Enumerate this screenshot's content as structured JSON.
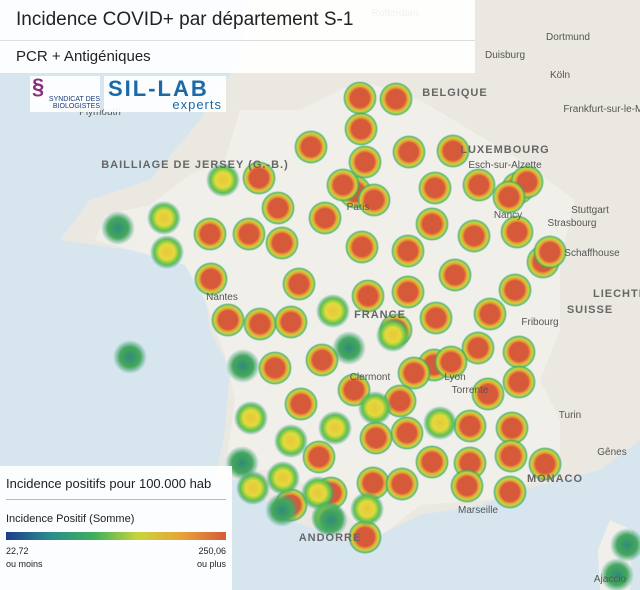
{
  "header": {
    "title": "Incidence COVID+ par département S-1",
    "subtitle": "PCR + Antigéniques"
  },
  "logos": {
    "syndicat": "SYNDICAT DES BIOLOGISTES",
    "sillab": "SIL-LAB",
    "experts": "experts"
  },
  "map_labels": [
    "Rotterdam",
    "Duisburg",
    "Dortmund",
    "BELGIQUE",
    "Köln",
    "Frankfurt-sur-le-Main",
    "LUXEMBOURG",
    "Esch-sur-Alzette",
    "Plymouth",
    "BAILLIAGE DE JERSEY (G.-B.)",
    "Stuttgart",
    "Paris",
    "Nancy",
    "Strasbourg",
    "Schaffhouse",
    "Nantes",
    "FRANCE",
    "Fribourg",
    "SUISSE",
    "LIECHTE",
    "Clermont",
    "Lyon",
    "Torrente",
    "Turin",
    "Gênes",
    "MONACO",
    "Marseille",
    "ANDORRE",
    "Ajaccio"
  ],
  "legend": {
    "title": "Incidence positifs pour 100.000 hab",
    "measure": "Incidence Positif (Somme)",
    "min": "22,72",
    "min_note": "ou moins",
    "max": "250,06",
    "max_note": "ou plus"
  }
}
